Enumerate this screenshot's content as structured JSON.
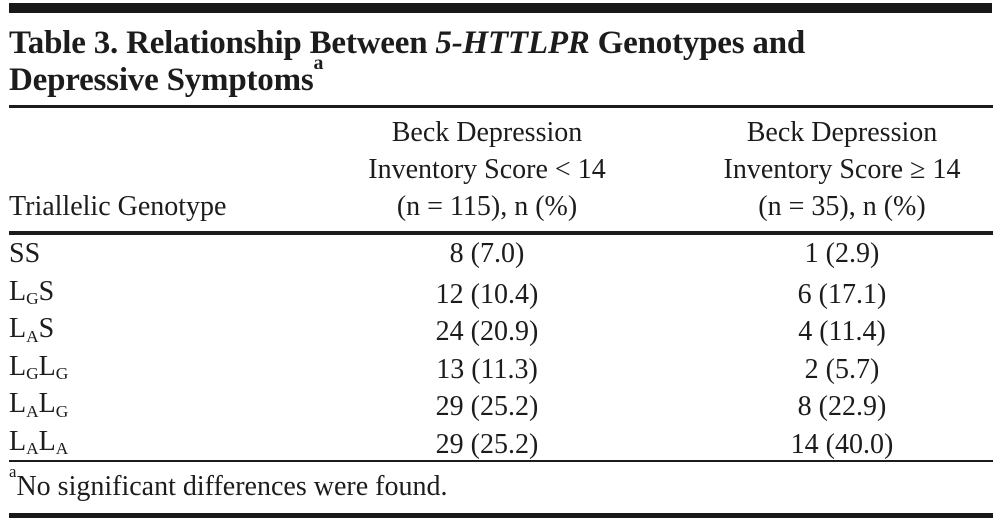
{
  "title": {
    "line1_prefix": "Table 3. Relationship Between ",
    "line1_gene": "5-HTTLPR",
    "line1_suffix": " Genotypes and",
    "line2": "Depressive Symptoms",
    "footnote_marker": "a"
  },
  "table": {
    "header": {
      "col1": "Triallelic Genotype",
      "col2_lines": [
        "Beck Depression",
        "Inventory Score < 14",
        "(n = 115), n (%)"
      ],
      "col3_lines": [
        "Beck Depression",
        "Inventory Score ≥ 14",
        "(n = 35), n (%)"
      ]
    },
    "rows": [
      {
        "genotype": [
          {
            "text": "SS",
            "sub": false
          }
        ],
        "values": [
          "8 (7.0)",
          "1 (2.9)"
        ]
      },
      {
        "genotype": [
          {
            "text": "L",
            "sub": false
          },
          {
            "text": "G",
            "sub": true
          },
          {
            "text": "S",
            "sub": false
          }
        ],
        "values": [
          "12 (10.4)",
          "6 (17.1)"
        ]
      },
      {
        "genotype": [
          {
            "text": "L",
            "sub": false
          },
          {
            "text": "A",
            "sub": true
          },
          {
            "text": "S",
            "sub": false
          }
        ],
        "values": [
          "24 (20.9)",
          "4 (11.4)"
        ]
      },
      {
        "genotype": [
          {
            "text": "L",
            "sub": false
          },
          {
            "text": "G",
            "sub": true
          },
          {
            "text": "L",
            "sub": false
          },
          {
            "text": "G",
            "sub": true
          }
        ],
        "values": [
          "13 (11.3)",
          "2 (5.7)"
        ]
      },
      {
        "genotype": [
          {
            "text": "L",
            "sub": false
          },
          {
            "text": "A",
            "sub": true
          },
          {
            "text": "L",
            "sub": false
          },
          {
            "text": "G",
            "sub": true
          }
        ],
        "values": [
          "29 (25.2)",
          "8 (22.9)"
        ]
      },
      {
        "genotype": [
          {
            "text": "L",
            "sub": false
          },
          {
            "text": "A",
            "sub": true
          },
          {
            "text": "L",
            "sub": false
          },
          {
            "text": "A",
            "sub": true
          }
        ],
        "values": [
          "29 (25.2)",
          "14 (40.0)"
        ]
      }
    ]
  },
  "footnote": {
    "marker": "a",
    "text": "No significant differences were found."
  },
  "colors": {
    "text": "#1c1c1c",
    "rule": "#181818",
    "background": "#ffffff"
  }
}
